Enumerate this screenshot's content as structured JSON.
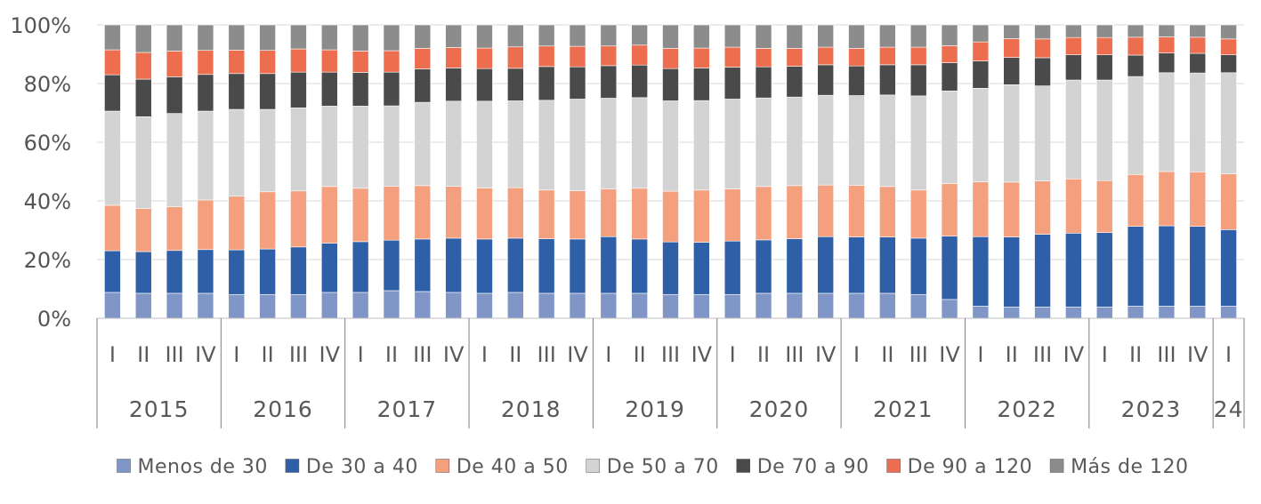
{
  "chart_data": {
    "type": "bar",
    "stacked": true,
    "normalized": true,
    "title": "",
    "xlabel": "",
    "ylabel": "",
    "ylim": [
      0,
      100
    ],
    "y_unit": "%",
    "y_ticks": [
      "0%",
      "20%",
      "40%",
      "60%",
      "80%",
      "100%"
    ],
    "grid": true,
    "legend_position": "bottom",
    "categories": [
      "2015 I",
      "2015 II",
      "2015 III",
      "2015 IV",
      "2016 I",
      "2016 II",
      "2016 III",
      "2016 IV",
      "2017 I",
      "2017 II",
      "2017 III",
      "2017 IV",
      "2018 I",
      "2018 II",
      "2018 III",
      "2018 IV",
      "2019 I",
      "2019 II",
      "2019 III",
      "2019 IV",
      "2020 I",
      "2020 II",
      "2020 III",
      "2020 IV",
      "2021 I",
      "2021 II",
      "2021 III",
      "2021 IV",
      "2022 I",
      "2022 II",
      "2022 III",
      "2022 IV",
      "2023 I",
      "2023 II",
      "2023 III",
      "2023 IV",
      "24 I"
    ],
    "quarter_labels": [
      "I",
      "II",
      "III",
      "IV",
      "I",
      "II",
      "III",
      "IV",
      "I",
      "II",
      "III",
      "IV",
      "I",
      "II",
      "III",
      "IV",
      "I",
      "II",
      "III",
      "IV",
      "I",
      "II",
      "III",
      "IV",
      "I",
      "II",
      "III",
      "IV",
      "I",
      "II",
      "III",
      "IV",
      "I",
      "II",
      "III",
      "IV",
      "I"
    ],
    "year_groups": [
      {
        "label": "2015",
        "count": 4
      },
      {
        "label": "2016",
        "count": 4
      },
      {
        "label": "2017",
        "count": 4
      },
      {
        "label": "2018",
        "count": 4
      },
      {
        "label": "2019",
        "count": 4
      },
      {
        "label": "2020",
        "count": 4
      },
      {
        "label": "2021",
        "count": 4
      },
      {
        "label": "2022",
        "count": 4
      },
      {
        "label": "2023",
        "count": 4
      },
      {
        "label": "24",
        "count": 1
      }
    ],
    "series": [
      {
        "name": "Menos de 30",
        "color": "#7f96c6",
        "values": [
          8.8,
          8.5,
          8.5,
          8.5,
          8.1,
          8.1,
          8.1,
          8.8,
          8.8,
          9.4,
          9.1,
          8.8,
          8.5,
          8.8,
          8.5,
          8.5,
          8.5,
          8.5,
          8.1,
          8.1,
          8.1,
          8.5,
          8.5,
          8.5,
          8.5,
          8.5,
          8.1,
          6.4,
          4.1,
          3.8,
          3.8,
          3.8,
          3.8,
          4.1,
          4.1,
          4.1,
          4.1
        ]
      },
      {
        "name": "De 30 a 40",
        "color": "#2f5fa6",
        "values": [
          14.2,
          14.2,
          14.6,
          14.9,
          15.2,
          15.5,
          16.2,
          16.8,
          17.3,
          17.2,
          17.9,
          18.5,
          18.5,
          18.5,
          18.6,
          18.5,
          19.3,
          18.5,
          17.9,
          17.8,
          18.2,
          18.2,
          18.6,
          19.3,
          19.2,
          19.2,
          19.2,
          21.6,
          23.7,
          23.9,
          24.8,
          25.2,
          25.4,
          27.2,
          27.4,
          27.2,
          26.1
        ]
      },
      {
        "name": "De 40 a 50",
        "color": "#f4a07f",
        "values": [
          15.5,
          14.7,
          14.9,
          16.9,
          18.3,
          19.5,
          19.1,
          19.3,
          18.2,
          18.4,
          18.2,
          17.7,
          17.4,
          17.2,
          16.6,
          16.5,
          16.3,
          17.3,
          17.3,
          17.8,
          17.8,
          18.2,
          18.1,
          17.6,
          17.6,
          17.2,
          16.4,
          17.9,
          18.7,
          18.7,
          18.2,
          18.5,
          17.7,
          17.7,
          18.5,
          18.6,
          19.0
        ]
      },
      {
        "name": "De 50 a 70",
        "color": "#d3d3d3",
        "values": [
          32.1,
          31.3,
          31.8,
          30.3,
          29.6,
          28.1,
          28.3,
          27.4,
          28.0,
          27.4,
          28.4,
          29.0,
          29.6,
          29.6,
          30.6,
          31.2,
          30.9,
          30.9,
          30.8,
          30.5,
          30.6,
          30.2,
          30.2,
          30.6,
          30.6,
          31.2,
          32.1,
          31.6,
          31.9,
          33.2,
          32.4,
          33.7,
          34.3,
          33.4,
          33.7,
          33.7,
          34.5
        ]
      },
      {
        "name": "De 70 a 90",
        "color": "#4a4a4a",
        "values": [
          12.4,
          12.8,
          12.5,
          12.5,
          12.2,
          12.2,
          12.2,
          11.6,
          11.5,
          11.5,
          11.4,
          11.3,
          11.1,
          11.1,
          11.5,
          11.0,
          11.1,
          11.1,
          11.0,
          11.1,
          10.9,
          10.6,
          10.5,
          10.4,
          10.1,
          10.3,
          10.6,
          9.6,
          9.3,
          9.3,
          9.6,
          8.6,
          8.6,
          7.3,
          6.7,
          6.7,
          6.1
        ]
      },
      {
        "name": "De 90 a 120",
        "color": "#ed6e4e",
        "values": [
          8.5,
          9.1,
          8.8,
          8.2,
          8.0,
          7.9,
          7.9,
          7.6,
          7.3,
          7.3,
          7.0,
          7.0,
          7.0,
          7.3,
          7.0,
          7.0,
          6.7,
          6.8,
          6.9,
          6.8,
          6.8,
          6.3,
          6.1,
          6.0,
          6.0,
          6.0,
          6.0,
          5.8,
          6.5,
          6.4,
          6.4,
          5.9,
          5.9,
          6.1,
          5.5,
          5.5,
          5.4
        ]
      },
      {
        "name": "Más de 120",
        "color": "#8c8c8c",
        "values": [
          8.5,
          9.4,
          8.9,
          8.7,
          8.6,
          8.7,
          8.2,
          8.5,
          8.9,
          8.8,
          8.0,
          7.7,
          7.9,
          7.5,
          7.2,
          7.3,
          7.2,
          6.9,
          8.0,
          7.9,
          7.6,
          8.0,
          8.0,
          7.6,
          8.0,
          7.6,
          7.6,
          7.1,
          5.8,
          4.7,
          4.8,
          4.3,
          4.3,
          4.2,
          4.1,
          4.2,
          4.8
        ]
      }
    ]
  }
}
